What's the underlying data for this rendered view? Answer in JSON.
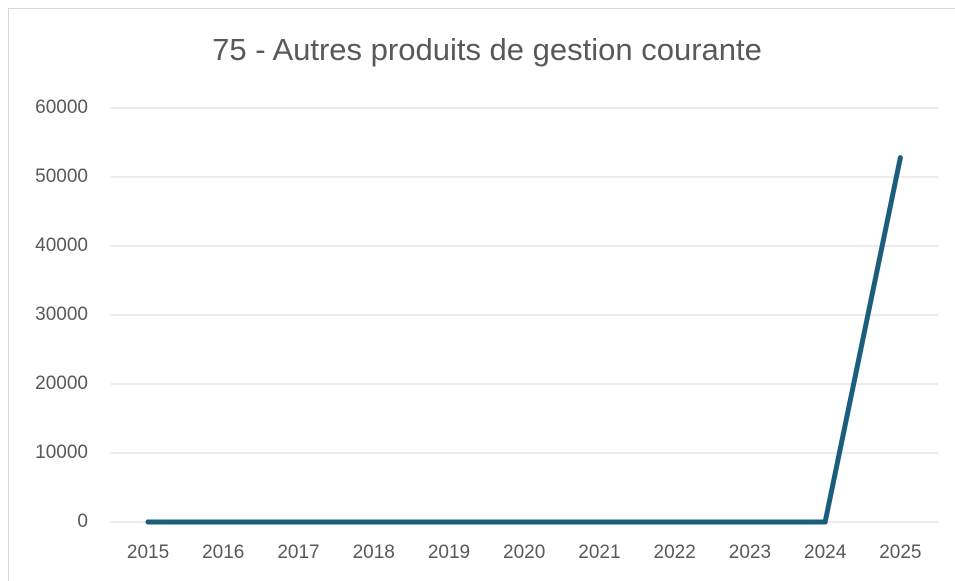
{
  "chart_data": {
    "type": "line",
    "title": "75 - Autres produits de gestion courante",
    "categories": [
      "2015",
      "2016",
      "2017",
      "2018",
      "2019",
      "2020",
      "2021",
      "2022",
      "2023",
      "2024",
      "2025"
    ],
    "values": [
      0,
      0,
      0,
      0,
      0,
      0,
      0,
      0,
      0,
      0,
      52800
    ],
    "color": "#1b5e7b",
    "ylim": [
      0,
      60000
    ],
    "yticks": [
      0,
      10000,
      20000,
      30000,
      40000,
      50000,
      60000
    ],
    "grid": true
  }
}
